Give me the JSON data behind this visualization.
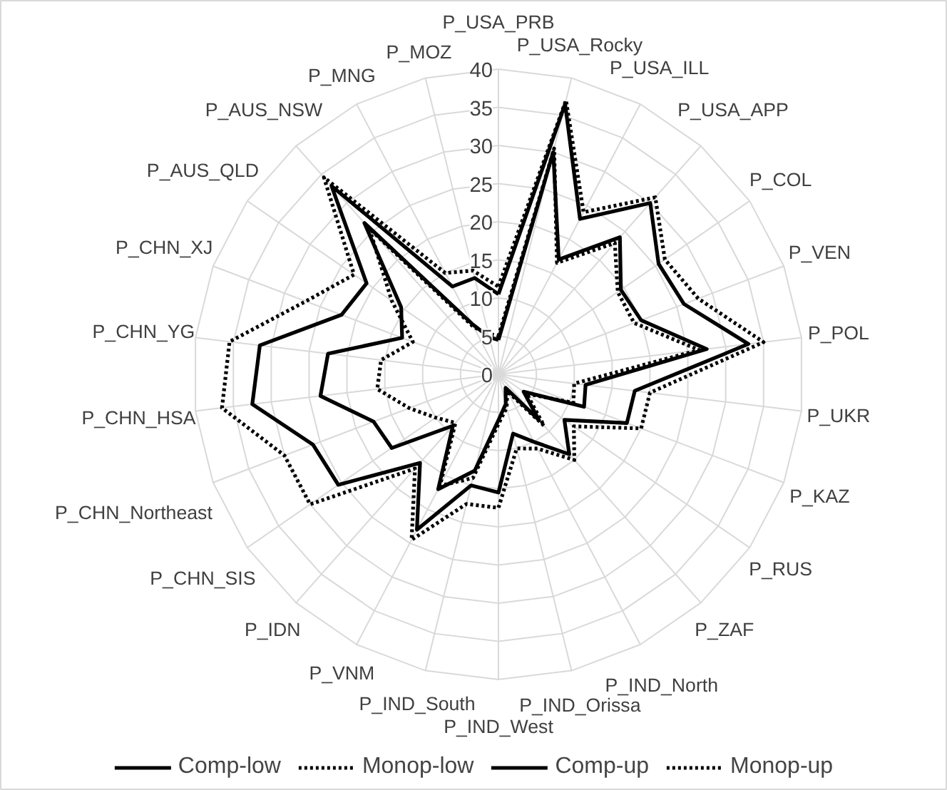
{
  "chart_data": {
    "type": "radar",
    "categories": [
      "P_USA_PRB",
      "P_USA_Rocky",
      "P_USA_ILL",
      "P_USA_APP",
      "P_COL",
      "P_VEN",
      "P_POL",
      "P_UKR",
      "P_KAZ",
      "P_RUS",
      "P_ZAF",
      "P_IND_North",
      "P_IND_Orissa",
      "P_IND_West",
      "P_IND_South",
      "P_VNM",
      "P_IDN",
      "P_CHN_SIS",
      "P_CHN_Northeast",
      "P_CHN_HSA",
      "P_CHN_YG",
      "P_CHN_XJ",
      "P_AUS_QLD",
      "P_AUS_NSW",
      "P_MNG",
      "P_MOZ"
    ],
    "series": [
      {
        "name": "Comp-low",
        "color": "#000000",
        "line_style": "solid",
        "values": [
          4.5,
          30,
          17,
          24,
          19.5,
          20,
          27.5,
          11.5,
          12,
          4,
          8,
          2,
          4,
          6,
          13,
          17,
          9,
          17,
          17.5,
          23.5,
          22.5,
          13.5,
          15.5,
          26.5,
          7.5,
          5
        ]
      },
      {
        "name": "Monop-low",
        "color": "#000000",
        "line_style": "dotted",
        "values": [
          5,
          30.5,
          16.5,
          23,
          19,
          19,
          26.5,
          10,
          10.5,
          4.5,
          9,
          2.5,
          4.5,
          6.5,
          14,
          16.5,
          8.5,
          10,
          12.5,
          16,
          15.5,
          12,
          17,
          25.5,
          7,
          5.5
        ]
      },
      {
        "name": "Comp-up",
        "color": "#000000",
        "line_style": "solid",
        "values": [
          10.5,
          36.5,
          23,
          30,
          25.5,
          26,
          33,
          18,
          18,
          10.5,
          14,
          10,
          8,
          15.5,
          15,
          23,
          15.5,
          25.5,
          26,
          32.5,
          31.5,
          22,
          21,
          33,
          13,
          13
        ]
      },
      {
        "name": "Monop-up",
        "color": "#000000",
        "line_style": "dotted",
        "values": [
          11.5,
          37,
          24,
          31,
          26.5,
          28,
          35,
          20,
          20,
          12,
          15,
          11,
          10,
          17.5,
          17.5,
          24.5,
          16.5,
          30,
          30,
          36.5,
          35.5,
          27,
          23,
          34.5,
          15,
          14
        ]
      }
    ],
    "ylim": [
      0,
      40
    ],
    "yticks": [
      0,
      5,
      10,
      15,
      20,
      25,
      30,
      35,
      40
    ],
    "grid": true,
    "legend": "bottom"
  }
}
